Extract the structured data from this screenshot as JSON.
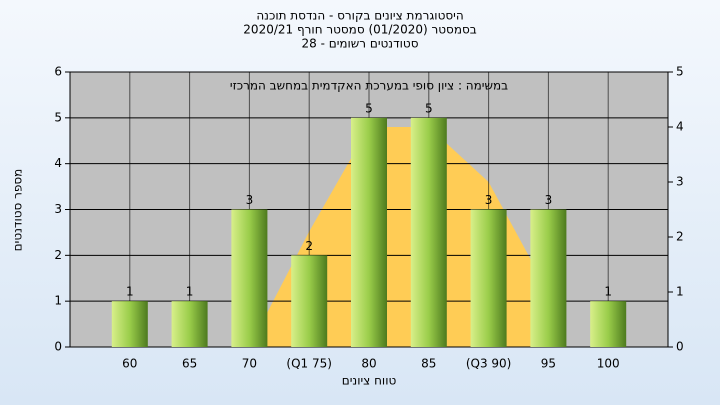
{
  "chart_data": {
    "type": "bar",
    "title": [
      "היסטוגרמת ציונים בקורס - הנדסת תוכנה",
      "בסמסטר  (01/2020)  סמסטר חורף  2020/21",
      "סטודנטים רשומים - 28"
    ],
    "xlabel": "טווח ציונים",
    "ylabel": "מספר סטודנטים",
    "categories": [
      "60",
      "65",
      "70",
      "(Q1 75)",
      "80",
      "85",
      "(Q3 90)",
      "95",
      "100"
    ],
    "series": [
      {
        "name": "במשימה : ציון סופי במערכת האקדמית במחשב המרכזי",
        "color": "#9acd4a",
        "values": [
          1,
          1,
          3,
          2,
          5,
          5,
          3,
          3,
          1
        ]
      },
      {
        "type": "area",
        "axis": "y2",
        "color": "#ffcc55",
        "values": [
          null,
          null,
          0,
          2.1,
          4,
          4,
          3,
          1,
          null
        ]
      }
    ],
    "ylim": [
      0,
      6
    ],
    "yticks": [
      0,
      1,
      2,
      3,
      4,
      5,
      6
    ],
    "y2lim": [
      0,
      5
    ],
    "y2ticks": [
      0,
      1,
      2,
      3,
      4,
      5
    ],
    "grid": true
  }
}
